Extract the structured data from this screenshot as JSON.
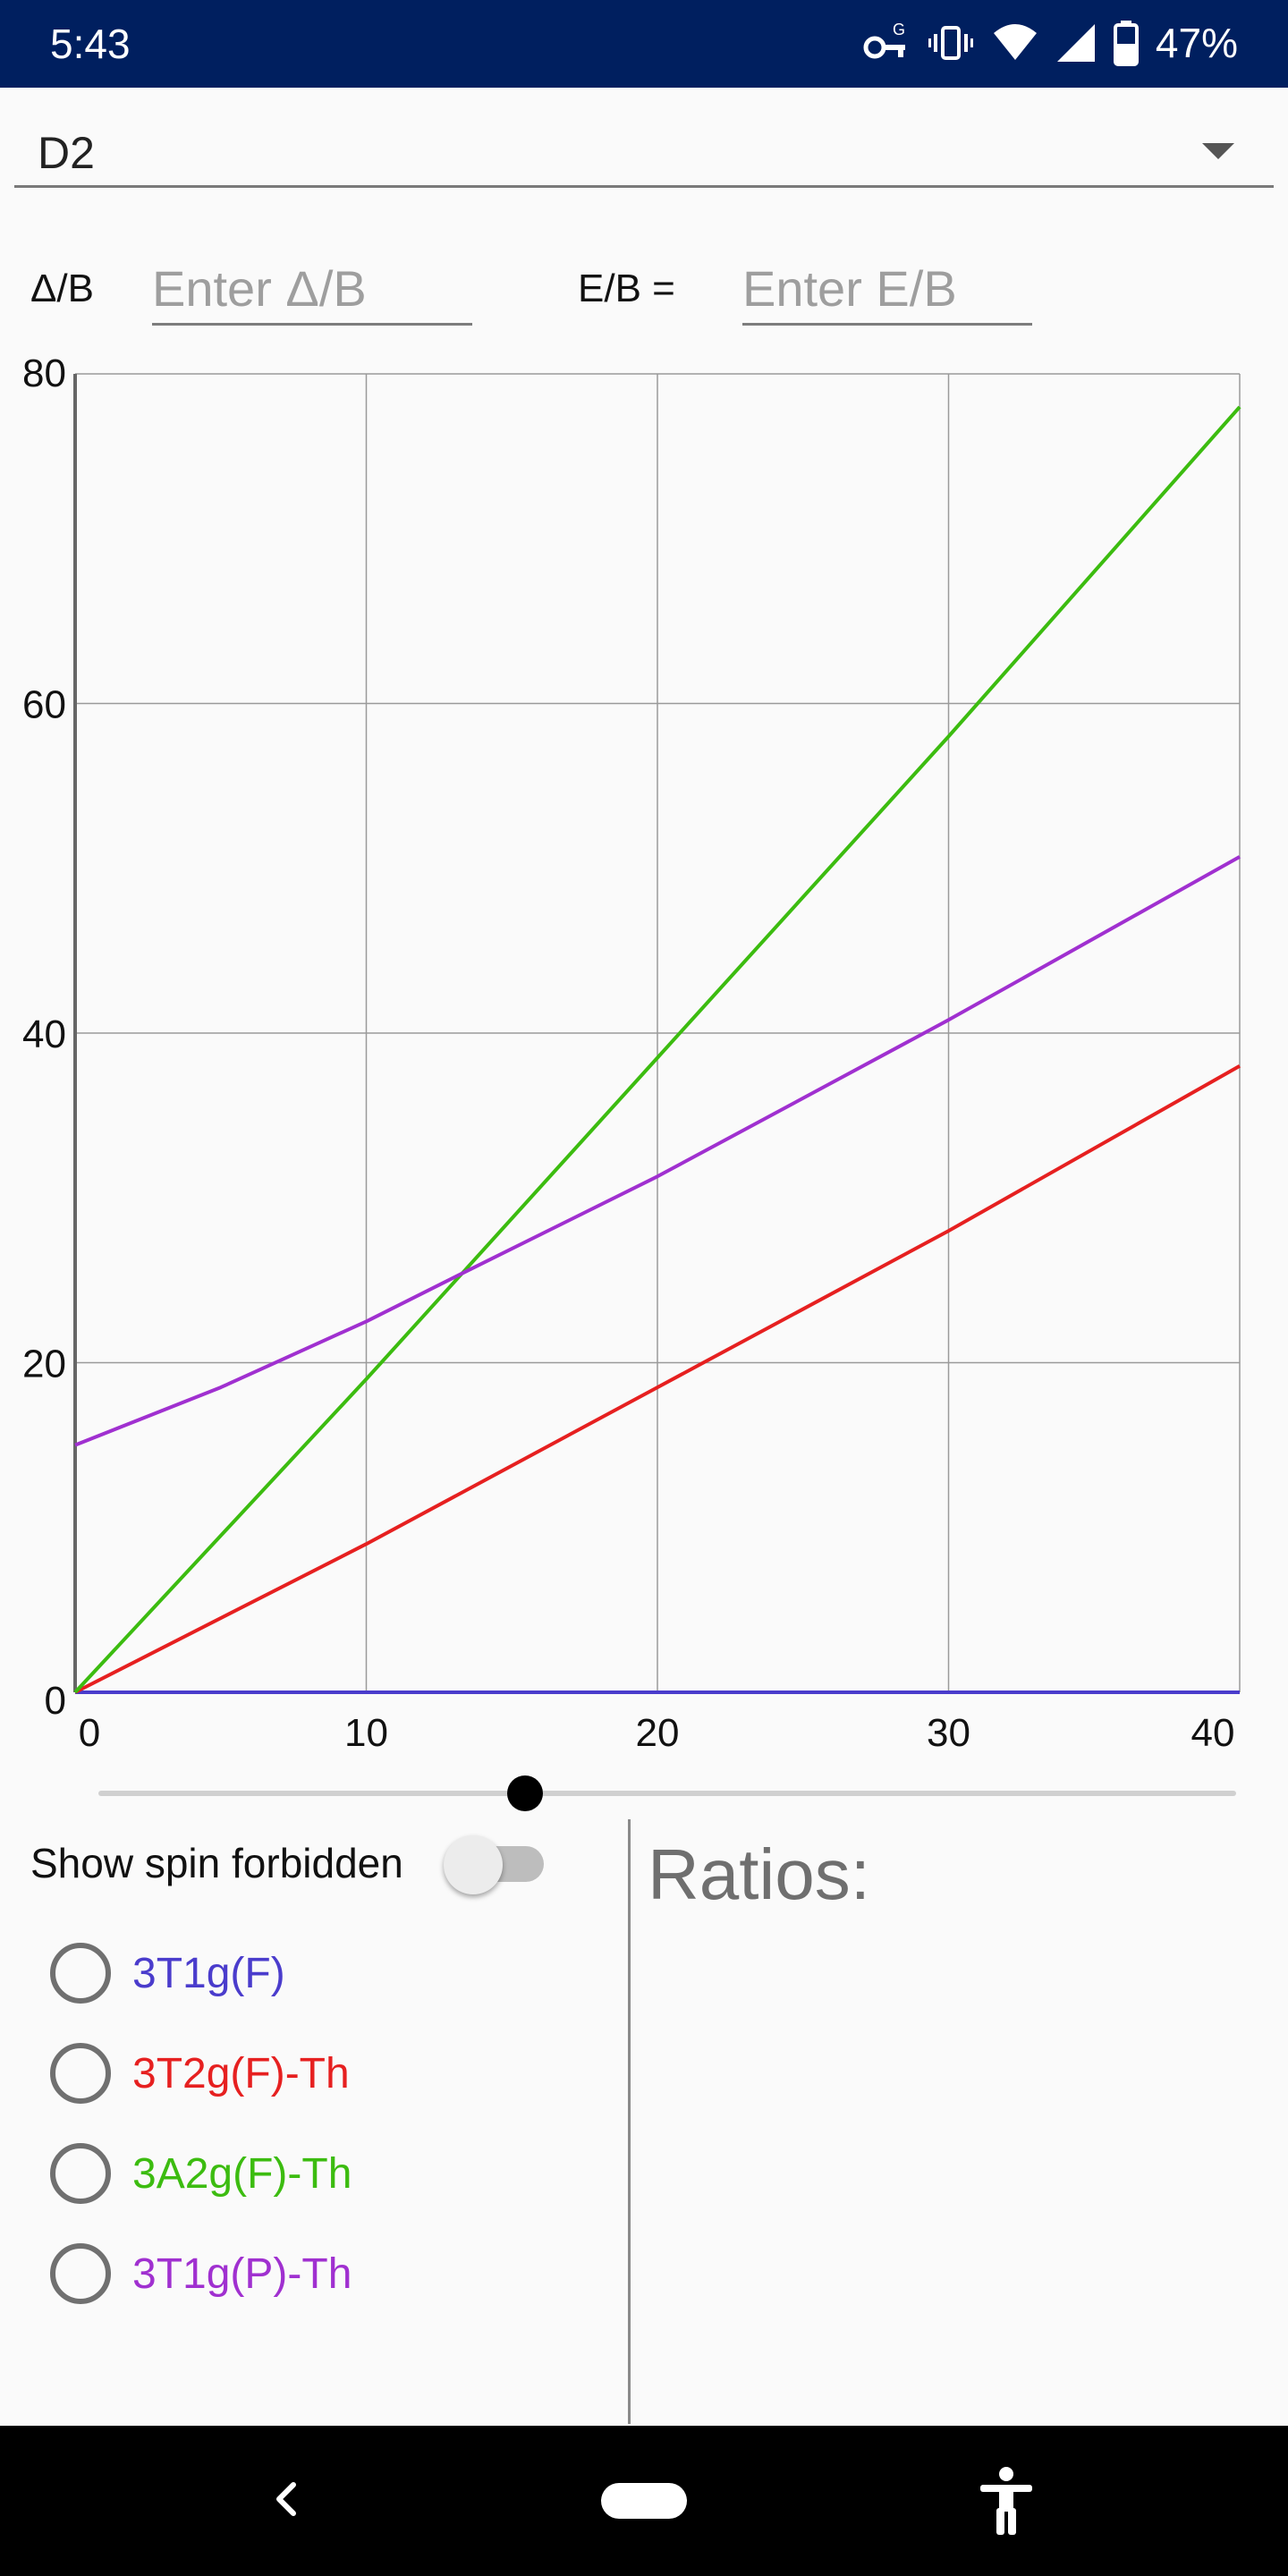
{
  "status_bar": {
    "time": "5:43",
    "battery": "47%",
    "icons": [
      "vpn-key-icon",
      "vibrate-icon",
      "wifi-icon",
      "signal-icon",
      "battery-icon"
    ]
  },
  "dropdown": {
    "selected": "D2"
  },
  "inputs": {
    "delta_label": "Δ/B",
    "delta_placeholder": "Enter Δ/B",
    "e_label": "E/B =",
    "e_placeholder": "Enter E/B"
  },
  "chart_data": {
    "type": "line",
    "xlim": [
      0,
      40
    ],
    "ylim": [
      0,
      80
    ],
    "x_ticks": [
      0,
      10,
      20,
      30,
      40
    ],
    "y_ticks": [
      0,
      20,
      40,
      60,
      80
    ],
    "grid": true,
    "series": [
      {
        "color": "#4a3ccc",
        "x": [
          0,
          40
        ],
        "y": [
          0,
          0
        ]
      },
      {
        "color": "#e62020",
        "x": [
          0,
          10,
          20,
          30,
          40
        ],
        "y": [
          0,
          9,
          18.5,
          28,
          38
        ]
      },
      {
        "color": "#3cbc10",
        "x": [
          0,
          10,
          20,
          30,
          40
        ],
        "y": [
          0,
          19,
          38.5,
          58,
          78
        ]
      },
      {
        "color": "#a030d0",
        "x": [
          0,
          5,
          10,
          13.5,
          20,
          30,
          40
        ],
        "y": [
          15,
          18.5,
          22.5,
          25.6,
          31.3,
          40.8,
          50.7
        ]
      }
    ]
  },
  "slider": {
    "value": 15,
    "min": 0,
    "max": 40
  },
  "spin_forbidden": {
    "label": "Show spin forbidden",
    "enabled": false
  },
  "states": [
    {
      "label": "3T1g(F)",
      "color": "#4a3ccc"
    },
    {
      "label": "3T2g(F)-Th",
      "color": "#e62020"
    },
    {
      "label": "3A2g(F)-Th",
      "color": "#3cbc10"
    },
    {
      "label": "3T1g(P)-Th",
      "color": "#a030d0"
    }
  ],
  "ratios": {
    "title": "Ratios:"
  }
}
